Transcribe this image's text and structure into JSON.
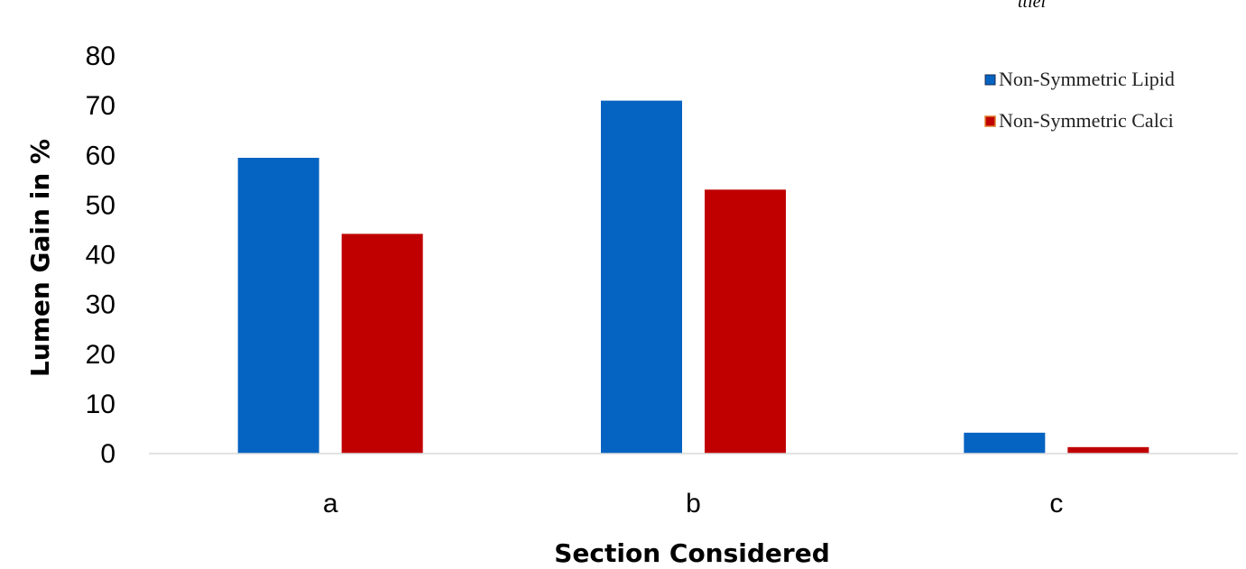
{
  "chart_data": {
    "type": "bar",
    "title": "",
    "xlabel": "Section Considered",
    "ylabel": "Lumen Gain in %",
    "categories": [
      "a",
      "b",
      "c"
    ],
    "series": [
      {
        "name": "Non-Symmetric Lipid",
        "values": [
          59.5,
          71,
          4.2
        ],
        "color": "#0563C1"
      },
      {
        "name": "Non-Symmetric Calci",
        "values": [
          44.2,
          53.1,
          1.3
        ],
        "color": "#C00000"
      }
    ],
    "ylim": [
      0,
      80
    ],
    "yticks": [
      0,
      10,
      20,
      30,
      40,
      50,
      60,
      70,
      80
    ],
    "grid": false,
    "legend_position": "top-right",
    "corner_fragment": "ttlei"
  }
}
